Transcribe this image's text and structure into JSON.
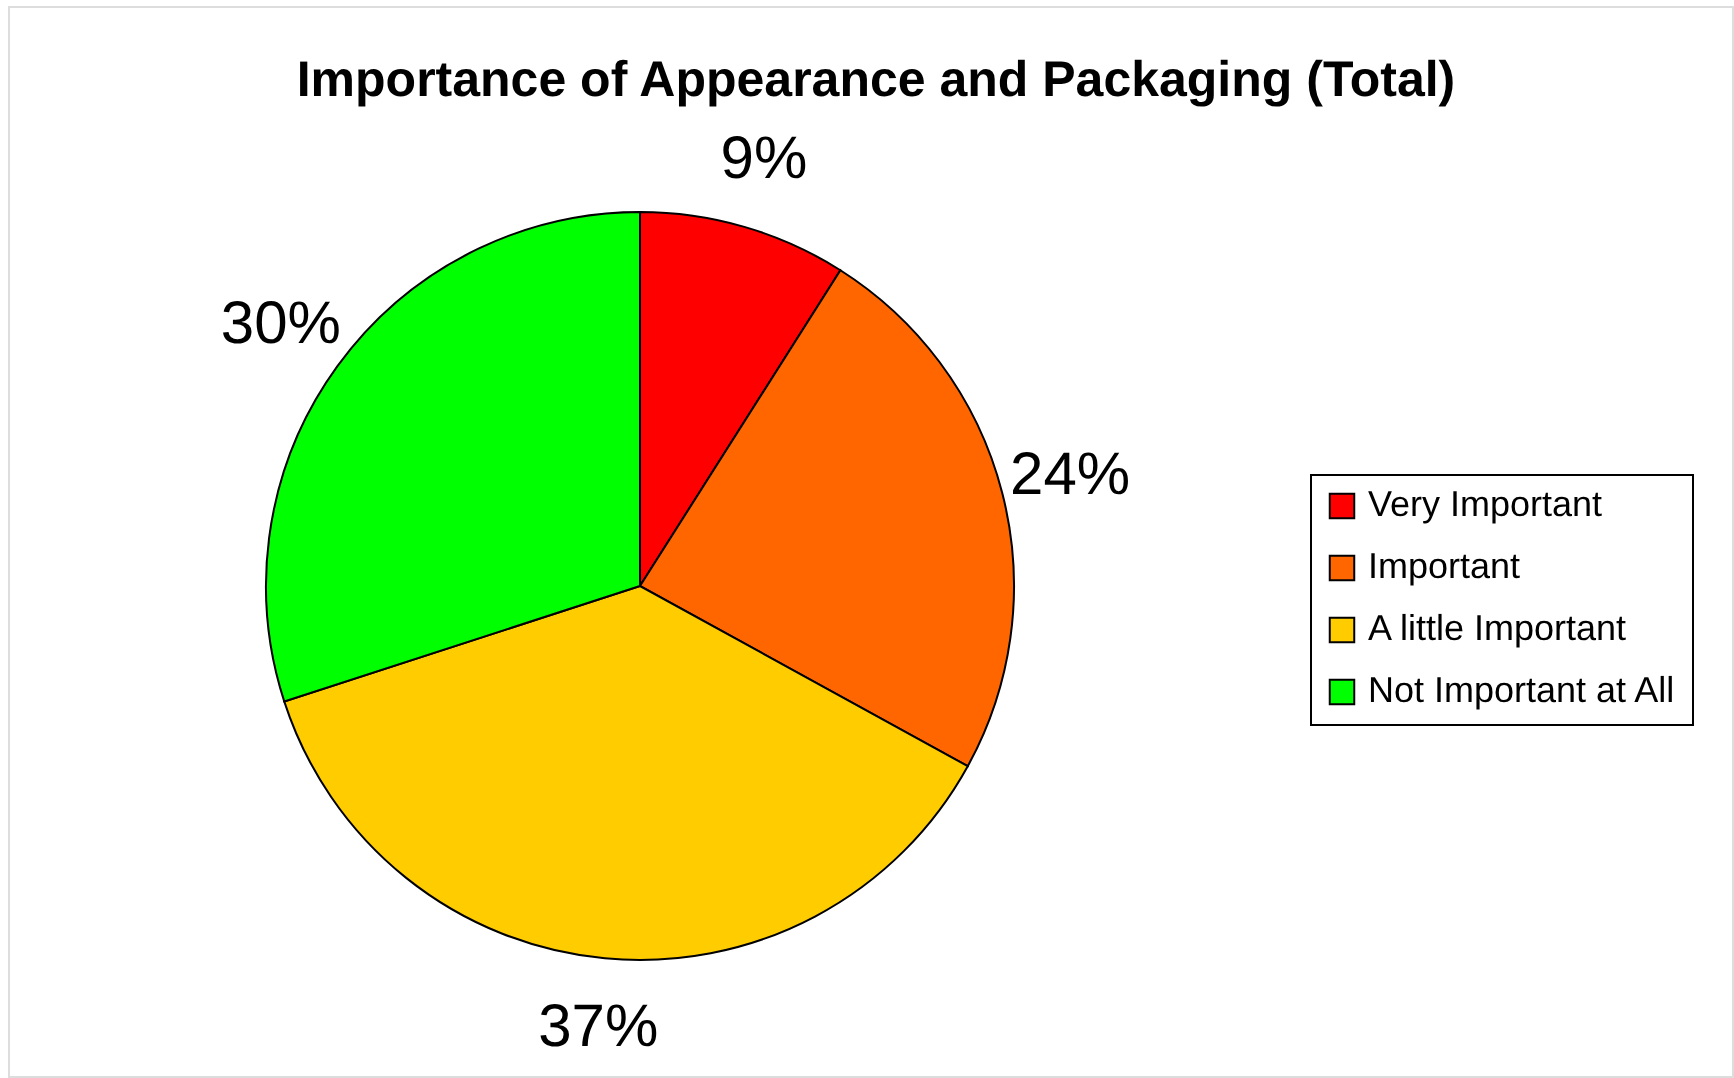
{
  "chart_data": {
    "type": "pie",
    "title": "Importance of Appearance and Packaging (Total)",
    "categories": [
      "Very Important",
      "Important",
      "A little Important",
      "Not Important at All"
    ],
    "values": [
      9,
      24,
      37,
      30
    ],
    "colors": [
      "#ff0000",
      "#ff6600",
      "#ffcc00",
      "#00ff00"
    ],
    "value_labels": [
      "9%",
      "24%",
      "37%",
      "30%"
    ],
    "legend": "right"
  }
}
